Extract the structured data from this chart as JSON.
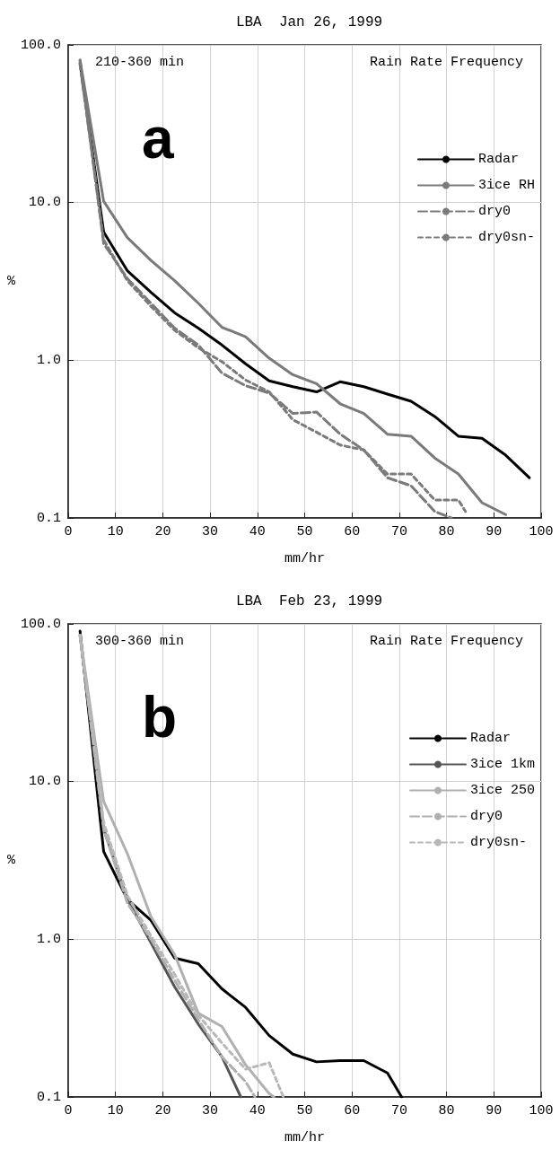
{
  "chart_data": [
    {
      "type": "line",
      "title": "LBA  Jan 26, 1999",
      "xlabel": "mm/hr",
      "ylabel": "%",
      "annotations": [
        "210-360 min",
        "Rain Rate Frequency",
        "a"
      ],
      "x": [
        2.5,
        7.5,
        12.5,
        17.5,
        22.5,
        27.5,
        32.5,
        37.5,
        42.5,
        47.5,
        52.5,
        57.5,
        62.5,
        67.5,
        72.5,
        77.5,
        82.5,
        87.5,
        92.5,
        97.5
      ],
      "series": [
        {
          "name": "Radar",
          "color": "#000000",
          "line_style": "solid",
          "values": [
            77,
            6.5,
            3.7,
            2.7,
            2.0,
            1.6,
            1.25,
            0.95,
            0.74,
            0.68,
            0.63,
            0.73,
            0.68,
            0.61,
            0.55,
            0.44,
            0.33,
            0.32,
            0.25,
            0.18
          ]
        },
        {
          "name": "3ice RH",
          "color": "#7a7a7a",
          "line_style": "solid",
          "values": [
            80,
            10.2,
            6,
            4.3,
            3.2,
            2.3,
            1.62,
            1.41,
            1.03,
            0.81,
            0.71,
            0.53,
            0.46,
            0.34,
            0.33,
            0.24,
            0.19,
            0.125,
            0.105,
            null
          ]
        },
        {
          "name": "dry0",
          "color": "#7a7a7a",
          "line_style": "dashed",
          "x": [
            2.5,
            7.5,
            12.5,
            17.5,
            22.5,
            27.5,
            32.5,
            37.5,
            42.5,
            47.5,
            52.5,
            57.5,
            62.5,
            67.5,
            72.5,
            77.5,
            81
          ],
          "values": [
            80,
            5.5,
            3.3,
            2.3,
            1.6,
            1.25,
            0.83,
            0.69,
            0.62,
            0.46,
            0.47,
            0.34,
            0.27,
            0.18,
            0.16,
            0.11,
            0.1
          ]
        },
        {
          "name": "dry0sn-",
          "color": "#7a7a7a",
          "line_style": "dotted",
          "x": [
            2.5,
            7.5,
            12.5,
            17.5,
            22.5,
            27.5,
            32.5,
            37.5,
            42.5,
            47.5,
            52.5,
            57.5,
            62.5,
            67.5,
            72.5,
            77.5,
            82.5,
            84
          ],
          "values": [
            75,
            5.8,
            3.2,
            2.2,
            1.55,
            1.2,
            0.98,
            0.75,
            0.63,
            0.42,
            0.35,
            0.29,
            0.27,
            0.19,
            0.19,
            0.13,
            0.13,
            0.11
          ]
        }
      ],
      "xlim": [
        0,
        100
      ],
      "xticks": [
        0,
        10,
        20,
        30,
        40,
        50,
        60,
        70,
        80,
        90,
        100
      ],
      "log": "y",
      "ylim": [
        0.1,
        100
      ],
      "yticks": [
        0.1,
        {
          "value": 1,
          "label": "1.0"
        },
        {
          "value": 10,
          "label": "10.0"
        },
        {
          "value": 100,
          "label": "100.0"
        }
      ],
      "grid": true,
      "legend": "right",
      "marker": "none"
    },
    {
      "type": "line",
      "title": "LBA  Feb 23, 1999",
      "xlabel": "mm/hr",
      "ylabel": "%",
      "annotations": [
        "300-360 min",
        "Rain Rate Frequency",
        "b"
      ],
      "x": [
        2.5,
        7.5,
        12.5,
        17.5,
        22.5,
        27.5,
        32.5,
        37.5,
        42.5,
        47.5,
        52.5,
        57.5,
        62.5,
        67.5,
        70.5
      ],
      "series": [
        {
          "name": "Radar",
          "color": "#000000",
          "line_style": "solid",
          "values": [
            90,
            3.6,
            1.79,
            1.32,
            0.76,
            0.7,
            0.485,
            0.37,
            0.245,
            0.187,
            0.167,
            0.17,
            0.17,
            0.142,
            0.1
          ]
        },
        {
          "name": "3ice 1km",
          "color": "#555555",
          "line_style": "solid",
          "x": [
            2.5,
            7.5,
            12.5,
            17.5,
            22.5,
            27.5,
            32.5,
            36.5
          ],
          "values": [
            85,
            5,
            1.8,
            0.95,
            0.5,
            0.29,
            0.18,
            0.1
          ]
        },
        {
          "name": "3ice 250",
          "color": "#b0b0b0",
          "line_style": "solid",
          "x": [
            2.5,
            7.5,
            12.5,
            17.5,
            22.5,
            27.5,
            32.5,
            37.5,
            42.5,
            43.5
          ],
          "values": [
            85,
            7.5,
            3.5,
            1.39,
            0.8,
            0.34,
            0.28,
            0.16,
            0.105,
            0.1
          ]
        },
        {
          "name": "dry0",
          "color": "#b0b0b0",
          "line_style": "dashed",
          "x": [
            2.5,
            7.5,
            12.5,
            17.5,
            22.5,
            27.5,
            32.5,
            37.5,
            39.5
          ],
          "values": [
            85,
            5,
            1.7,
            1.0,
            0.55,
            0.31,
            0.18,
            0.125,
            0.1
          ]
        },
        {
          "name": "dry0sn-",
          "color": "#b8b8b8",
          "line_style": "dotted",
          "x": [
            2.5,
            7.5,
            12.5,
            17.5,
            22.5,
            27.5,
            32.5,
            37.5,
            42.5,
            45.5
          ],
          "values": [
            85,
            5.5,
            1.9,
            1.05,
            0.6,
            0.33,
            0.22,
            0.15,
            0.165,
            0.1
          ]
        }
      ],
      "xlim": [
        0,
        100
      ],
      "xticks": [
        0,
        10,
        20,
        30,
        40,
        50,
        60,
        70,
        80,
        90,
        100
      ],
      "log": "y",
      "ylim": [
        0.1,
        100
      ],
      "yticks": [
        0.1,
        {
          "value": 1,
          "label": "1.0"
        },
        {
          "value": 10,
          "label": "10.0"
        },
        {
          "value": 100,
          "label": "100.0"
        }
      ],
      "grid": true,
      "legend": "right",
      "marker": "none"
    }
  ]
}
